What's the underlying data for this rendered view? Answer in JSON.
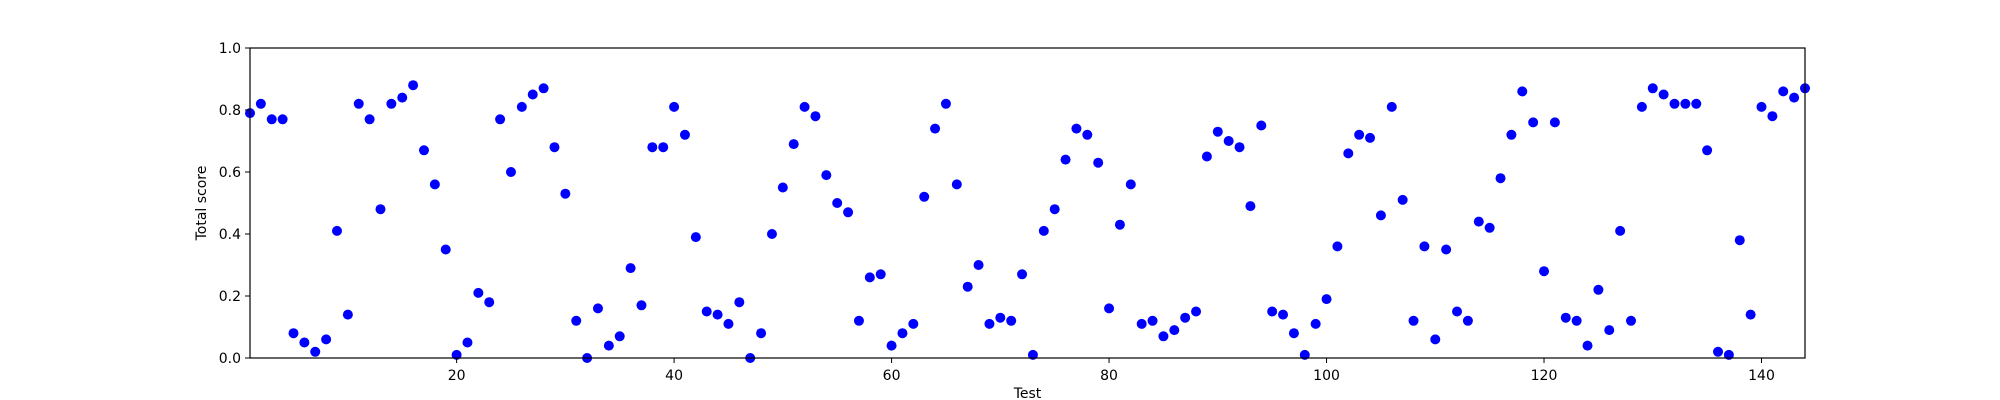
{
  "chart_data": {
    "type": "scatter",
    "title": "",
    "xlabel": "Test",
    "ylabel": "Total score",
    "xlim": [
      1,
      144
    ],
    "ylim": [
      0.0,
      1.0
    ],
    "xticks": [
      20,
      40,
      60,
      80,
      100,
      120,
      140
    ],
    "yticks": [
      0.0,
      0.2,
      0.4,
      0.6,
      0.8,
      1.0
    ],
    "ytick_labels": [
      "0.0",
      "0.2",
      "0.4",
      "0.6",
      "0.8",
      "1.0"
    ],
    "grid": false,
    "legend": false,
    "marker_color": "#0000ff",
    "series": [
      {
        "x": [
          1,
          2,
          3,
          4,
          5,
          6,
          7,
          8,
          9,
          10,
          11,
          12,
          13,
          14,
          15,
          16,
          17,
          18,
          19,
          20,
          21,
          22,
          23,
          24,
          25,
          26,
          27,
          28,
          29,
          30,
          31,
          32,
          33,
          34,
          35,
          36,
          37,
          38,
          39,
          40,
          41,
          42,
          43,
          44,
          45,
          46,
          47,
          48,
          49,
          50,
          51,
          52,
          53,
          54,
          55,
          56,
          57,
          58,
          59,
          60,
          61,
          62,
          63,
          64,
          65,
          66,
          67,
          68,
          69,
          70,
          71,
          72,
          73,
          74,
          75,
          76,
          77,
          78,
          79,
          80,
          81,
          82,
          83,
          84,
          85,
          86,
          87,
          88,
          89,
          90,
          91,
          92,
          93,
          94,
          95,
          96,
          97,
          98,
          99,
          100,
          101,
          102,
          103,
          104,
          105,
          106,
          107,
          108,
          109,
          110,
          111,
          112,
          113,
          114,
          115,
          116,
          117,
          118,
          119,
          120,
          121,
          122,
          123,
          124,
          125,
          126,
          127,
          128,
          129,
          130,
          131,
          132,
          133,
          134,
          135,
          136,
          137,
          138,
          139,
          140,
          141,
          142,
          143,
          144
        ],
        "values": [
          0.79,
          0.82,
          0.77,
          0.77,
          0.08,
          0.05,
          0.02,
          0.06,
          0.41,
          0.14,
          0.82,
          0.77,
          0.48,
          0.82,
          0.84,
          0.88,
          0.67,
          0.56,
          0.35,
          0.01,
          0.05,
          0.21,
          0.18,
          0.77,
          0.6,
          0.81,
          0.85,
          0.87,
          0.68,
          0.53,
          0.12,
          0.0,
          0.16,
          0.04,
          0.07,
          0.29,
          0.17,
          0.68,
          0.68,
          0.81,
          0.72,
          0.39,
          0.15,
          0.14,
          0.11,
          0.18,
          0.0,
          0.08,
          0.4,
          0.55,
          0.69,
          0.81,
          0.78,
          0.59,
          0.5,
          0.47,
          0.12,
          0.26,
          0.27,
          0.04,
          0.08,
          0.11,
          0.52,
          0.74,
          0.82,
          0.56,
          0.23,
          0.3,
          0.11,
          0.13,
          0.12,
          0.27,
          0.01,
          0.41,
          0.48,
          0.64,
          0.74,
          0.72,
          0.63,
          0.16,
          0.43,
          0.56,
          0.11,
          0.12,
          0.07,
          0.09,
          0.13,
          0.15,
          0.65,
          0.73,
          0.7,
          0.68,
          0.49,
          0.75,
          0.15,
          0.14,
          0.08,
          0.01,
          0.11,
          0.19,
          0.36,
          0.66,
          0.72,
          0.71,
          0.46,
          0.81,
          0.51,
          0.12,
          0.36,
          0.06,
          0.35,
          0.15,
          0.12,
          0.44,
          0.42,
          0.58,
          0.72,
          0.86,
          0.76,
          0.28,
          0.76,
          0.13,
          0.12,
          0.04,
          0.22,
          0.09,
          0.41,
          0.12,
          0.81,
          0.87,
          0.85,
          0.82,
          0.82,
          0.82,
          0.67,
          0.02,
          0.01,
          0.38,
          0.14,
          0.81,
          0.78,
          0.86,
          0.84,
          0.87
        ]
      }
    ]
  }
}
